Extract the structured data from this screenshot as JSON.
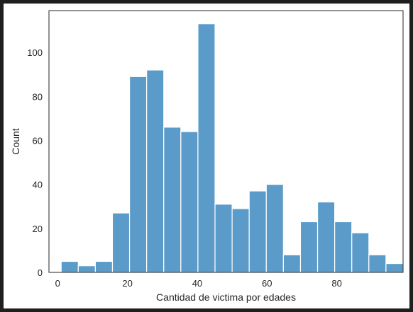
{
  "chart_data": {
    "type": "bar",
    "subtype": "histogram",
    "xlabel": "Cantidad de victima por edades",
    "ylabel": "Count",
    "xlim": [
      -2.5,
      99
    ],
    "ylim": [
      0,
      119
    ],
    "xticks": [
      0,
      20,
      40,
      60,
      80
    ],
    "yticks": [
      0,
      20,
      40,
      60,
      80,
      100
    ],
    "grid": false,
    "bar_color": "#5b9bc9",
    "bins": [
      {
        "x0": 1.0,
        "x1": 5.9,
        "count": 5
      },
      {
        "x0": 5.9,
        "x1": 10.8,
        "count": 3
      },
      {
        "x0": 10.8,
        "x1": 15.7,
        "count": 5
      },
      {
        "x0": 15.7,
        "x1": 20.6,
        "count": 27
      },
      {
        "x0": 20.6,
        "x1": 25.5,
        "count": 89
      },
      {
        "x0": 25.5,
        "x1": 30.4,
        "count": 92
      },
      {
        "x0": 30.4,
        "x1": 35.3,
        "count": 66
      },
      {
        "x0": 35.3,
        "x1": 40.2,
        "count": 64
      },
      {
        "x0": 40.2,
        "x1": 45.1,
        "count": 113
      },
      {
        "x0": 45.1,
        "x1": 50.0,
        "count": 31
      },
      {
        "x0": 50.0,
        "x1": 54.9,
        "count": 29
      },
      {
        "x0": 54.9,
        "x1": 59.8,
        "count": 37
      },
      {
        "x0": 59.8,
        "x1": 64.7,
        "count": 40
      },
      {
        "x0": 64.7,
        "x1": 69.6,
        "count": 8
      },
      {
        "x0": 69.6,
        "x1": 74.5,
        "count": 23
      },
      {
        "x0": 74.5,
        "x1": 79.4,
        "count": 32
      },
      {
        "x0": 79.4,
        "x1": 84.3,
        "count": 23
      },
      {
        "x0": 84.3,
        "x1": 89.2,
        "count": 18
      },
      {
        "x0": 89.2,
        "x1": 94.1,
        "count": 8
      },
      {
        "x0": 94.1,
        "x1": 99.0,
        "count": 4
      }
    ]
  }
}
